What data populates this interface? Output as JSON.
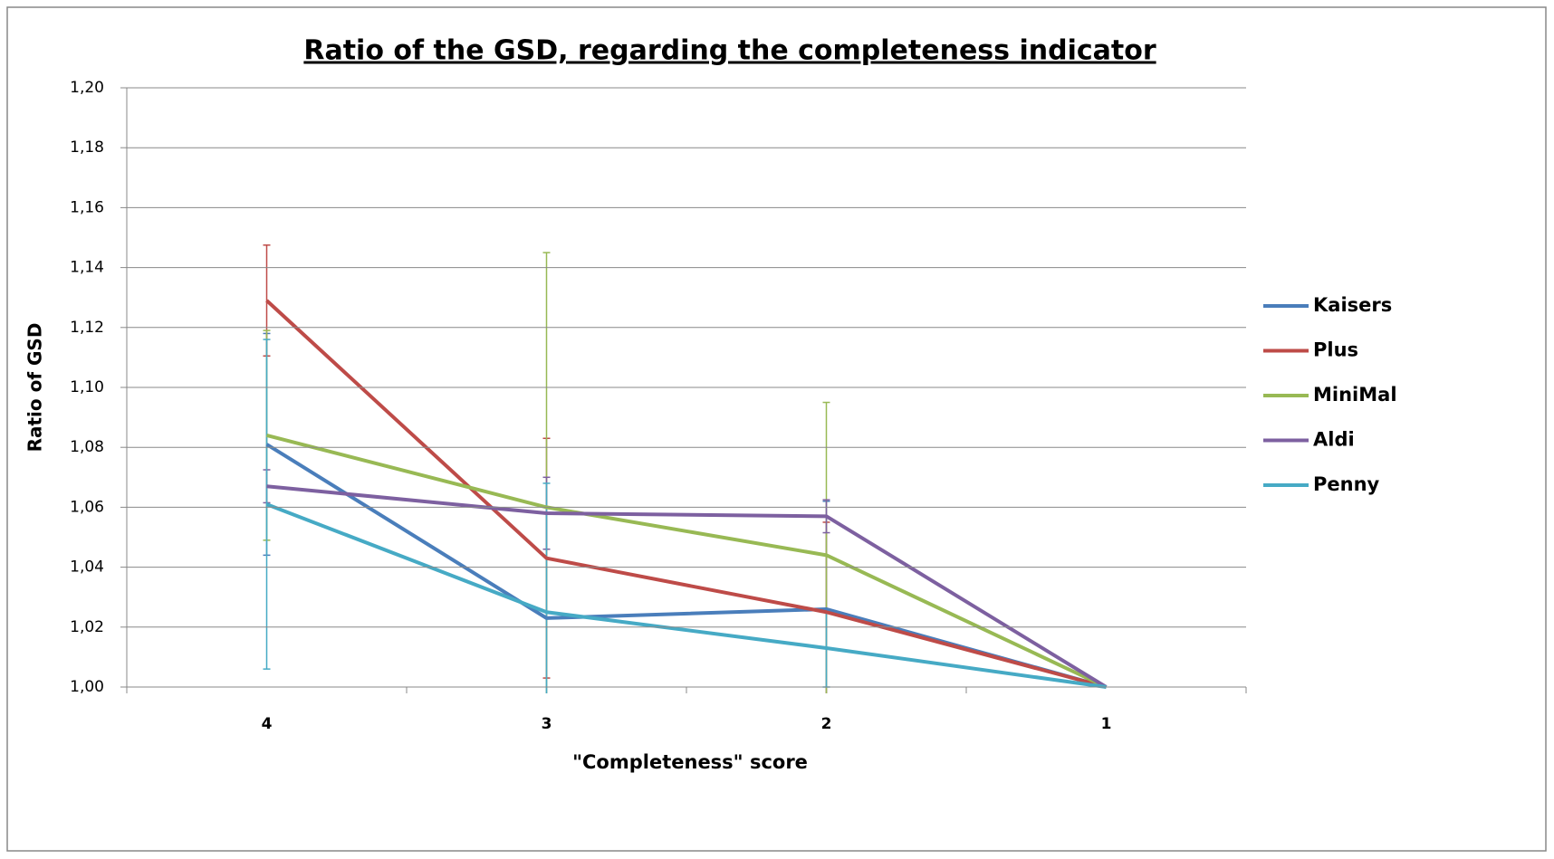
{
  "chart_data": {
    "type": "line",
    "title": "Ratio of the GSD, regarding the completeness indicator",
    "x_label": "\"Completeness\" score",
    "y_label": "Ratio of GSD",
    "categories": [
      "4",
      "3",
      "2",
      "1"
    ],
    "ylim": [
      1.0,
      1.2
    ],
    "yticks": [
      {
        "value": 1.0,
        "label": "1,00"
      },
      {
        "value": 1.02,
        "label": "1,02"
      },
      {
        "value": 1.04,
        "label": "1,04"
      },
      {
        "value": 1.06,
        "label": "1,06"
      },
      {
        "value": 1.08,
        "label": "1,08"
      },
      {
        "value": 1.1,
        "label": "1,10"
      },
      {
        "value": 1.12,
        "label": "1,12"
      },
      {
        "value": 1.14,
        "label": "1,14"
      },
      {
        "value": 1.16,
        "label": "1,16"
      },
      {
        "value": 1.18,
        "label": "1,18"
      },
      {
        "value": 1.2,
        "label": "1,20"
      }
    ],
    "grid": true,
    "legend": "right",
    "series": [
      {
        "name": "Kaisers",
        "color": "#4a7ebb",
        "values": [
          1.081,
          1.023,
          1.026,
          1.0
        ],
        "errors": [
          0.037,
          0.035,
          0.036,
          0
        ]
      },
      {
        "name": "Plus",
        "color": "#be4b48",
        "values": [
          1.129,
          1.043,
          1.025,
          1.0
        ],
        "errors": [
          0.0185,
          0.04,
          0.03,
          0
        ]
      },
      {
        "name": "MiniMal",
        "color": "#98b954",
        "values": [
          1.084,
          1.06,
          1.044,
          1.0
        ],
        "errors": [
          0.035,
          0.085,
          0.051,
          0
        ]
      },
      {
        "name": "Aldi",
        "color": "#7d60a0",
        "values": [
          1.067,
          1.058,
          1.057,
          1.0
        ],
        "errors": [
          0.0055,
          0.012,
          0.0055,
          0
        ]
      },
      {
        "name": "Penny",
        "color": "#46aac5",
        "values": [
          1.061,
          1.025,
          1.013,
          1.0
        ],
        "errors": [
          0.055,
          0.043,
          0.013,
          0
        ]
      }
    ]
  }
}
